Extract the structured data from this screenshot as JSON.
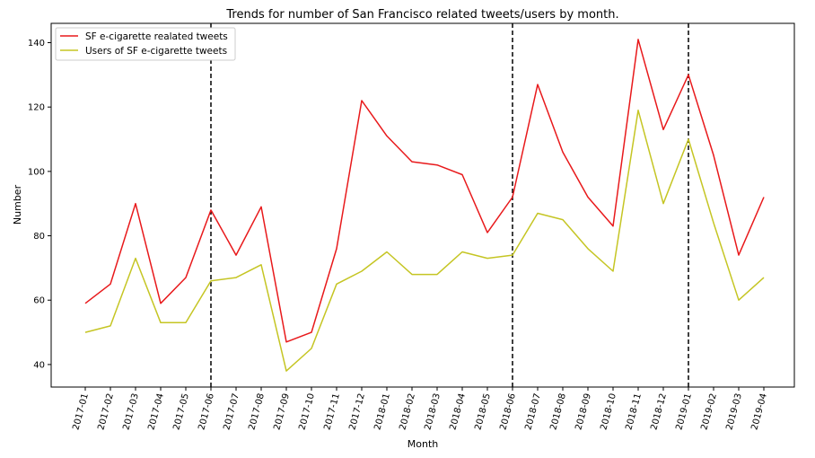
{
  "chart_data": {
    "type": "line",
    "title": "Trends for number of San Francisco related tweets/users by month.",
    "xlabel": "Month",
    "ylabel": "Number",
    "categories": [
      "2017-01",
      "2017-02",
      "2017-03",
      "2017-04",
      "2017-05",
      "2017-06",
      "2017-07",
      "2017-08",
      "2017-09",
      "2017-10",
      "2017-11",
      "2017-12",
      "2018-01",
      "2018-02",
      "2018-03",
      "2018-04",
      "2018-05",
      "2018-06",
      "2018-07",
      "2018-08",
      "2018-09",
      "2018-10",
      "2018-11",
      "2018-12",
      "2019-01",
      "2019-02",
      "2019-03",
      "2019-04"
    ],
    "series": [
      {
        "name": "SF e-cigarette realated tweets",
        "color": "#e8191b",
        "values": [
          59,
          65,
          90,
          59,
          67,
          88,
          74,
          89,
          47,
          50,
          76,
          122,
          111,
          103,
          102,
          99,
          81,
          92,
          127,
          106,
          92,
          83,
          141,
          113,
          130,
          105,
          74,
          92
        ]
      },
      {
        "name": "Users of SF e-cigarette tweets",
        "color": "#c5c523",
        "values": [
          50,
          52,
          73,
          53,
          53,
          66,
          67,
          71,
          38,
          45,
          65,
          69,
          75,
          68,
          68,
          75,
          73,
          74,
          87,
          85,
          76,
          69,
          119,
          90,
          110,
          84,
          60,
          67
        ]
      }
    ],
    "yticks": [
      40,
      60,
      80,
      100,
      120,
      140
    ],
    "ylim": [
      33,
      146
    ],
    "vlines": [
      "2017-06",
      "2018-06",
      "2019-01"
    ],
    "vline_color": "#000000",
    "grid": false,
    "legend_position": "upper-left"
  }
}
